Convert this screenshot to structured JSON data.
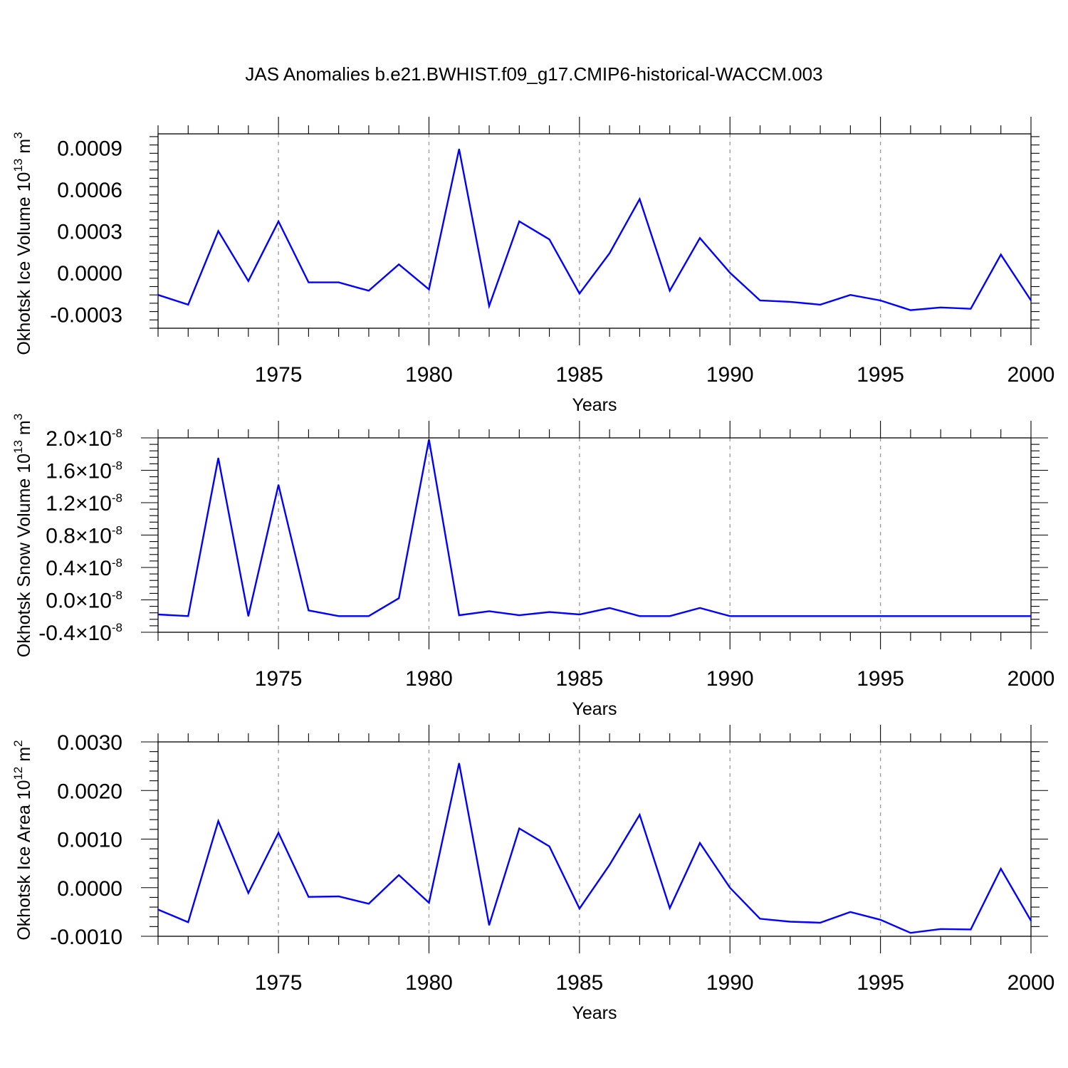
{
  "title": "JAS Anomalies b.e21.BWHIST.f09_g17.CMIP6-historical-WACCM.003",
  "colors": {
    "series": "#0000ff",
    "axes": "#000000",
    "grid": "#999999"
  },
  "chart_data": [
    {
      "type": "line",
      "ylabel": "Okhotsk Ice Volume 10",
      "ylabel_exp": "13",
      "ylabel_unit": " m",
      "ylabel_unit_exp": "3",
      "xlabel": "Years",
      "xlim": [
        1971,
        2000
      ],
      "ylim": [
        -0.0004,
        0.001
      ],
      "yticks": [
        -0.0003,
        0.0,
        0.0003,
        0.0006,
        0.0009
      ],
      "ytick_labels": [
        "-0.0003",
        "0.0000",
        "0.0003",
        "0.0006",
        "0.0009"
      ],
      "xticks": [
        1975,
        1980,
        1985,
        1990,
        1995,
        2000
      ],
      "xtick_labels": [
        "1975",
        "1980",
        "1985",
        "1990",
        "1995",
        "2000"
      ],
      "x": [
        1971,
        1972,
        1973,
        1974,
        1975,
        1976,
        1977,
        1978,
        1979,
        1980,
        1981,
        1982,
        1983,
        1984,
        1985,
        1986,
        1987,
        1988,
        1989,
        1990,
        1991,
        1992,
        1993,
        1994,
        1995,
        1996,
        1997,
        1998,
        1999,
        2000
      ],
      "series": [
        {
          "values": [
            -0.00016,
            -0.00023,
            0.0003,
            -6e-05,
            0.00037,
            -7e-05,
            -7e-05,
            -0.00013,
            6e-05,
            -0.00012,
            0.00089,
            -0.00024,
            0.00037,
            0.00024,
            -0.00015,
            0.00014,
            0.00053,
            -0.00013,
            0.00025,
            0.0,
            -0.0002,
            -0.00021,
            -0.00023,
            -0.00016,
            -0.0002,
            -0.00027,
            -0.00025,
            -0.00026,
            0.00013,
            -0.0002
          ]
        }
      ]
    },
    {
      "type": "line",
      "ylabel": "Okhotsk Snow Volume 10",
      "ylabel_exp": "13",
      "ylabel_unit": " m",
      "ylabel_unit_exp": "3",
      "xlabel": "Years",
      "xlim": [
        1971,
        2000
      ],
      "ylim": [
        -4e-09,
        2e-08
      ],
      "yticks": [
        -4e-09,
        0.0,
        4e-09,
        8e-09,
        1.2e-08,
        1.6e-08,
        2e-08
      ],
      "ytick_mantissas": [
        "-0.4",
        "0.0",
        "0.4",
        "0.8",
        "1.2",
        "1.6",
        "2.0"
      ],
      "ytick_times": "×10",
      "ytick_exp": "-8",
      "xticks": [
        1975,
        1980,
        1985,
        1990,
        1995,
        2000
      ],
      "xtick_labels": [
        "1975",
        "1980",
        "1985",
        "1990",
        "1995",
        "2000"
      ],
      "x": [
        1971,
        1972,
        1973,
        1974,
        1975,
        1976,
        1977,
        1978,
        1979,
        1980,
        1981,
        1982,
        1983,
        1984,
        1985,
        1986,
        1987,
        1988,
        1989,
        1990,
        1991,
        1992,
        1993,
        1994,
        1995,
        1996,
        1997,
        1998,
        1999,
        2000
      ],
      "series": [
        {
          "values": [
            -1.8e-09,
            -2e-09,
            1.75e-08,
            -2e-09,
            1.42e-08,
            -1.3e-09,
            -2e-09,
            -2e-09,
            2e-10,
            1.98e-08,
            -1.9e-09,
            -1.4e-09,
            -1.9e-09,
            -1.5e-09,
            -1.8e-09,
            -1e-09,
            -2e-09,
            -2e-09,
            -1e-09,
            -2e-09,
            -2e-09,
            -2e-09,
            -2e-09,
            -2e-09,
            -2e-09,
            -2e-09,
            -2e-09,
            -2e-09,
            -2e-09,
            -2e-09
          ]
        }
      ]
    },
    {
      "type": "line",
      "ylabel": "Okhotsk Ice Area 10",
      "ylabel_exp": "12",
      "ylabel_unit": " m",
      "ylabel_unit_exp": "2",
      "xlabel": "Years",
      "xlim": [
        1971,
        2000
      ],
      "ylim": [
        -0.001,
        0.003
      ],
      "yticks": [
        -0.001,
        0.0,
        0.001,
        0.002,
        0.003
      ],
      "ytick_labels": [
        "-0.0010",
        "0.0000",
        "0.0010",
        "0.0020",
        "0.0030"
      ],
      "xticks": [
        1975,
        1980,
        1985,
        1990,
        1995,
        2000
      ],
      "xtick_labels": [
        "1975",
        "1980",
        "1985",
        "1990",
        "1995",
        "2000"
      ],
      "x": [
        1971,
        1972,
        1973,
        1974,
        1975,
        1976,
        1977,
        1978,
        1979,
        1980,
        1981,
        1982,
        1983,
        1984,
        1985,
        1986,
        1987,
        1988,
        1989,
        1990,
        1991,
        1992,
        1993,
        1994,
        1995,
        1996,
        1997,
        1998,
        1999,
        2000
      ],
      "series": [
        {
          "values": [
            -0.00045,
            -0.00071,
            0.00137,
            -0.00011,
            0.00113,
            -0.00019,
            -0.00018,
            -0.00033,
            0.00026,
            -0.00031,
            0.00256,
            -0.00077,
            0.00122,
            0.00085,
            -0.00043,
            0.00047,
            0.0015,
            -0.00042,
            0.00092,
            0.0,
            -0.00064,
            -0.0007,
            -0.00072,
            -0.0005,
            -0.00066,
            -0.00093,
            -0.00085,
            -0.00086,
            0.00039,
            -0.00068
          ]
        }
      ]
    }
  ]
}
